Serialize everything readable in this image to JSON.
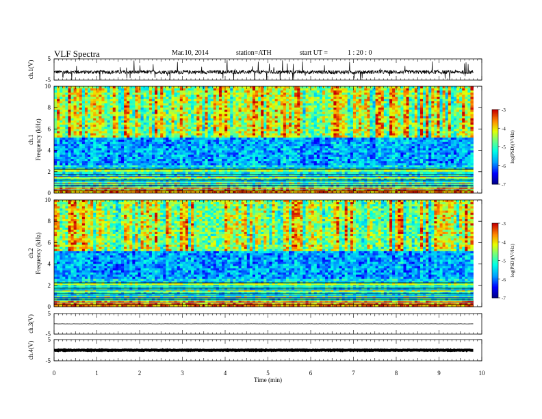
{
  "header": {
    "title": "VLF Spectra",
    "date": "Mar.10, 2014",
    "station": "station=ATH",
    "start_label": "start  UT  =",
    "start_time": "1 : 20 : 0"
  },
  "chart_data": [
    {
      "type": "line",
      "panel": "ch1-waveform",
      "ylabel": "ch.1(V)",
      "ylim": [
        -5,
        5
      ],
      "yticks": [
        -5,
        5
      ],
      "xlim": [
        0,
        10
      ],
      "x_extent_min": 9.8,
      "baseline_v": -1.2,
      "noise_v": 0.9
    },
    {
      "type": "heatmap",
      "panel": "ch1-spectrogram",
      "ylabel": "Frequency  (kHz)",
      "chlabel": "ch.1",
      "ylim": [
        0,
        10
      ],
      "yticks": [
        0,
        2,
        4,
        6,
        8,
        10
      ],
      "xlim": [
        0,
        10
      ],
      "x_extent_min": 9.8,
      "colorbar": {
        "label": "log(PSD)(V²/Hz)",
        "range": [
          -7,
          -3
        ],
        "ticks": [
          -7,
          -6,
          -5,
          -4,
          -3
        ]
      }
    },
    {
      "type": "heatmap",
      "panel": "ch2-spectrogram",
      "ylabel": "Frequency  (kHz)",
      "chlabel": "ch.2",
      "ylim": [
        0,
        10
      ],
      "yticks": [
        0,
        2,
        4,
        6,
        8,
        10
      ],
      "xlim": [
        0,
        10
      ],
      "x_extent_min": 9.8,
      "colorbar": {
        "label": "log(PSD)(V²/Hz)",
        "range": [
          -7,
          -3
        ],
        "ticks": [
          -7,
          -6,
          -5,
          -4,
          -3
        ]
      }
    },
    {
      "type": "line",
      "panel": "ch3-waveform",
      "ylabel": "ch.3(V)",
      "ylim": [
        -5,
        5
      ],
      "yticks": [
        -5,
        5
      ],
      "xlim": [
        0,
        10
      ],
      "x_extent_min": 9.8,
      "baseline_v": 0,
      "noise_v": 0.05
    },
    {
      "type": "line",
      "panel": "ch4-waveform",
      "ylabel": "ch.4(V)",
      "ylim": [
        -5,
        5
      ],
      "yticks": [
        -5,
        5
      ],
      "xlim": [
        0,
        10
      ],
      "x_extent_min": 9.8,
      "baseline_v": 0,
      "noise_v": 0.15
    }
  ],
  "xaxis": {
    "label": "Time  (min)",
    "ticks": [
      "0",
      "1",
      "2",
      "3",
      "4",
      "5",
      "6",
      "7",
      "8",
      "9",
      "10"
    ]
  }
}
